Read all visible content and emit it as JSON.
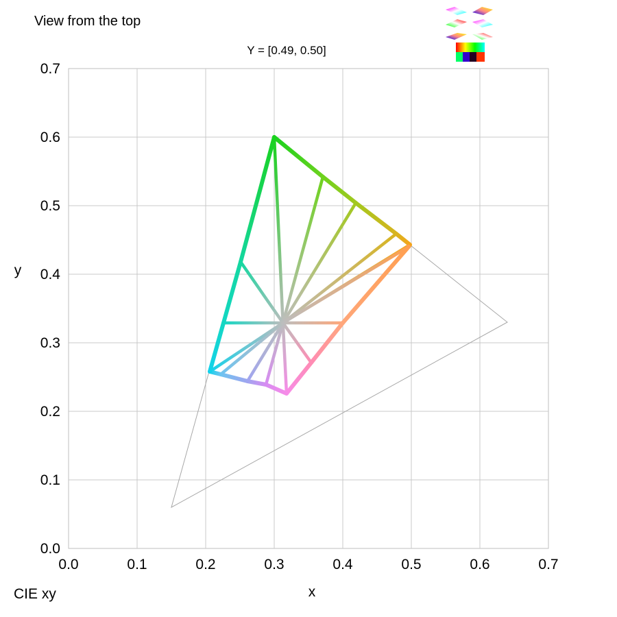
{
  "view_label": "View from the top",
  "corner_label": "CIE xy",
  "icons": {
    "thumbnails": "view-thumbnails-icon"
  },
  "chart_data": {
    "type": "line",
    "title": "",
    "subtitle": "Y = [0.49, 0.50]",
    "xlabel": "x",
    "ylabel": "y",
    "xlim": [
      0,
      0.7
    ],
    "ylim": [
      0,
      0.7
    ],
    "xticks": [
      "0.0",
      "0.1",
      "0.2",
      "0.3",
      "0.4",
      "0.5",
      "0.6",
      "0.7"
    ],
    "yticks": [
      "0.0",
      "0.1",
      "0.2",
      "0.3",
      "0.4",
      "0.5",
      "0.6",
      "0.7"
    ],
    "grid": true,
    "reference_triangle": [
      [
        0.64,
        0.33
      ],
      [
        0.3,
        0.6
      ],
      [
        0.15,
        0.06
      ]
    ],
    "white_point": [
      0.3127,
      0.329
    ],
    "boundary": [
      {
        "x": 0.3,
        "y": 0.6,
        "color": "#19d21e"
      },
      {
        "x": 0.371,
        "y": 0.542,
        "color": "#6ed21e"
      },
      {
        "x": 0.419,
        "y": 0.504,
        "color": "#a3c81e"
      },
      {
        "x": 0.478,
        "y": 0.459,
        "color": "#d8b41e"
      },
      {
        "x": 0.498,
        "y": 0.443,
        "color": "#f5a51a"
      },
      {
        "x": 0.496,
        "y": 0.44,
        "color": "#ff9f50"
      },
      {
        "x": 0.4,
        "y": 0.329,
        "color": "#ffa77a"
      },
      {
        "x": 0.354,
        "y": 0.271,
        "color": "#ff8cb4"
      },
      {
        "x": 0.318,
        "y": 0.226,
        "color": "#f78ce8"
      },
      {
        "x": 0.288,
        "y": 0.239,
        "color": "#d78cf2"
      },
      {
        "x": 0.261,
        "y": 0.244,
        "color": "#a0a5f0"
      },
      {
        "x": 0.222,
        "y": 0.254,
        "color": "#6ec3f0"
      },
      {
        "x": 0.206,
        "y": 0.258,
        "color": "#14d2eb"
      },
      {
        "x": 0.226,
        "y": 0.329,
        "color": "#14d7c3"
      },
      {
        "x": 0.251,
        "y": 0.418,
        "color": "#14d7a0"
      }
    ]
  }
}
